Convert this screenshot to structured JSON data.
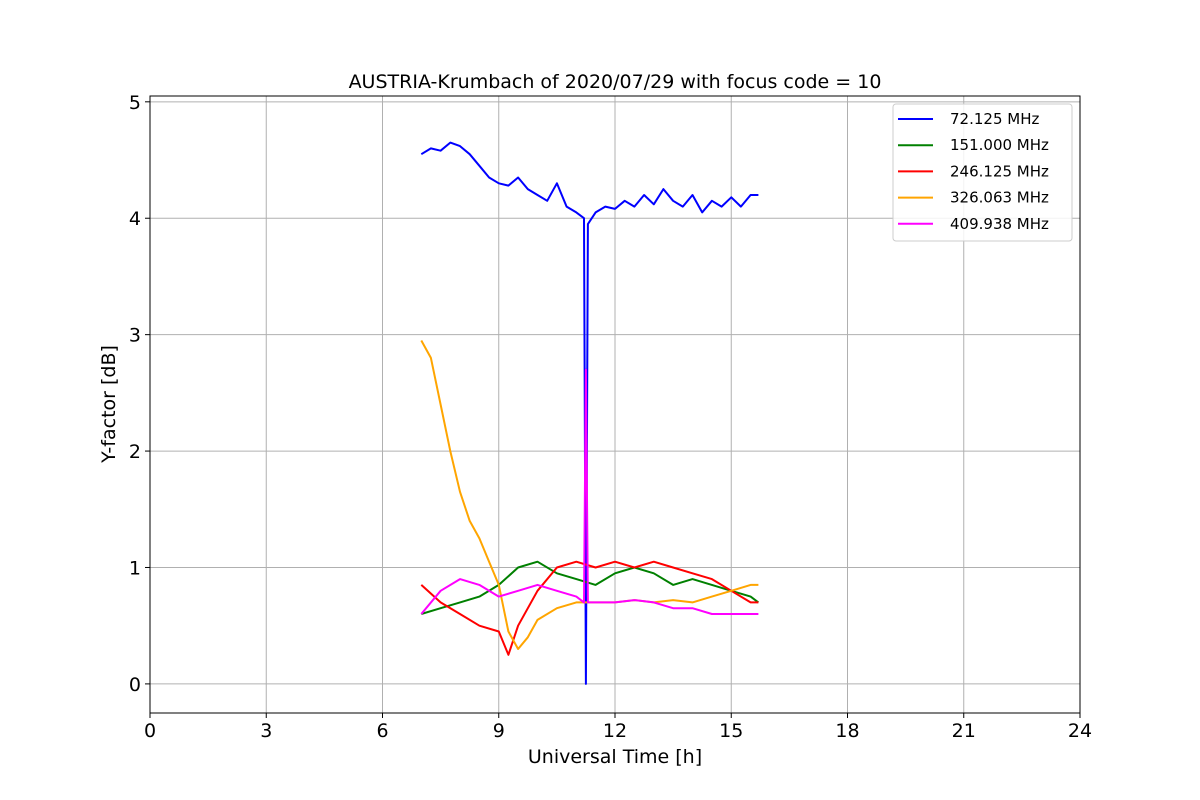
{
  "chart_data": {
    "type": "line",
    "title": "AUSTRIA-Krumbach of 2020/07/29 with focus code = 10",
    "xlabel": "Universal Time [h]",
    "ylabel": "Y-factor [dB]",
    "xlim": [
      0,
      24
    ],
    "ylim": [
      -0.25,
      5.05
    ],
    "xticks": [
      0,
      3,
      6,
      9,
      12,
      15,
      18,
      21,
      24
    ],
    "xtick_labels": [
      "0",
      "3",
      "6",
      "9",
      "12",
      "15",
      "18",
      "21",
      "24"
    ],
    "yticks": [
      0,
      1,
      2,
      3,
      4,
      5
    ],
    "ytick_labels": [
      "0",
      "1",
      "2",
      "3",
      "4",
      "5"
    ],
    "grid": true,
    "legend_position": "top-right",
    "series": [
      {
        "name": "72.125 MHz",
        "legend_label": " 72.125 MHz",
        "color": "#0000ff",
        "x": [
          7.0,
          7.25,
          7.5,
          7.75,
          8.0,
          8.25,
          8.5,
          8.75,
          9.0,
          9.25,
          9.5,
          9.75,
          10.0,
          10.25,
          10.5,
          10.75,
          11.0,
          11.2,
          11.25,
          11.3,
          11.5,
          11.75,
          12.0,
          12.25,
          12.5,
          12.75,
          13.0,
          13.25,
          13.5,
          13.75,
          14.0,
          14.25,
          14.5,
          14.75,
          15.0,
          15.25,
          15.5,
          15.7
        ],
        "y": [
          4.55,
          4.6,
          4.58,
          4.65,
          4.62,
          4.55,
          4.45,
          4.35,
          4.3,
          4.28,
          4.35,
          4.25,
          4.2,
          4.15,
          4.3,
          4.1,
          4.05,
          4.0,
          0.0,
          3.95,
          4.05,
          4.1,
          4.08,
          4.15,
          4.1,
          4.2,
          4.12,
          4.25,
          4.15,
          4.1,
          4.2,
          4.05,
          4.15,
          4.1,
          4.18,
          4.1,
          4.2,
          4.2
        ]
      },
      {
        "name": "151.000 MHz",
        "legend_label": "151.000 MHz",
        "color": "#008000",
        "x": [
          7.0,
          7.5,
          8.0,
          8.5,
          9.0,
          9.5,
          10.0,
          10.5,
          11.0,
          11.5,
          12.0,
          12.5,
          13.0,
          13.5,
          14.0,
          14.5,
          15.0,
          15.5,
          15.7
        ],
        "y": [
          0.6,
          0.65,
          0.7,
          0.75,
          0.85,
          1.0,
          1.05,
          0.95,
          0.9,
          0.85,
          0.95,
          1.0,
          0.95,
          0.85,
          0.9,
          0.85,
          0.8,
          0.75,
          0.7
        ]
      },
      {
        "name": "246.125 MHz",
        "legend_label": "246.125 MHz",
        "color": "#ff0000",
        "x": [
          7.0,
          7.5,
          8.0,
          8.5,
          9.0,
          9.25,
          9.5,
          10.0,
          10.5,
          11.0,
          11.5,
          12.0,
          12.5,
          13.0,
          13.5,
          14.0,
          14.5,
          15.0,
          15.5,
          15.7
        ],
        "y": [
          0.85,
          0.7,
          0.6,
          0.5,
          0.45,
          0.25,
          0.5,
          0.8,
          1.0,
          1.05,
          1.0,
          1.05,
          1.0,
          1.05,
          1.0,
          0.95,
          0.9,
          0.8,
          0.7,
          0.7
        ]
      },
      {
        "name": "326.063 MHz",
        "legend_label": "326.063 MHz",
        "color": "#ffa500",
        "x": [
          7.0,
          7.25,
          7.5,
          7.75,
          8.0,
          8.25,
          8.5,
          8.75,
          9.0,
          9.25,
          9.5,
          9.75,
          10.0,
          10.5,
          11.0,
          11.5,
          12.0,
          12.5,
          13.0,
          13.5,
          14.0,
          14.5,
          15.0,
          15.5,
          15.7
        ],
        "y": [
          2.95,
          2.8,
          2.4,
          2.0,
          1.65,
          1.4,
          1.25,
          1.05,
          0.85,
          0.45,
          0.3,
          0.4,
          0.55,
          0.65,
          0.7,
          0.7,
          0.7,
          0.72,
          0.7,
          0.72,
          0.7,
          0.75,
          0.8,
          0.85,
          0.85
        ]
      },
      {
        "name": "409.938 MHz",
        "legend_label": "409.938 MHz",
        "color": "#ff00ff",
        "x": [
          7.0,
          7.5,
          8.0,
          8.5,
          9.0,
          9.5,
          10.0,
          10.5,
          11.0,
          11.2,
          11.25,
          11.3,
          11.5,
          12.0,
          12.5,
          13.0,
          13.5,
          14.0,
          14.5,
          15.0,
          15.5,
          15.7
        ],
        "y": [
          0.6,
          0.8,
          0.9,
          0.85,
          0.75,
          0.8,
          0.85,
          0.8,
          0.75,
          0.7,
          2.7,
          0.7,
          0.7,
          0.7,
          0.72,
          0.7,
          0.65,
          0.65,
          0.6,
          0.6,
          0.6,
          0.6
        ]
      }
    ]
  }
}
